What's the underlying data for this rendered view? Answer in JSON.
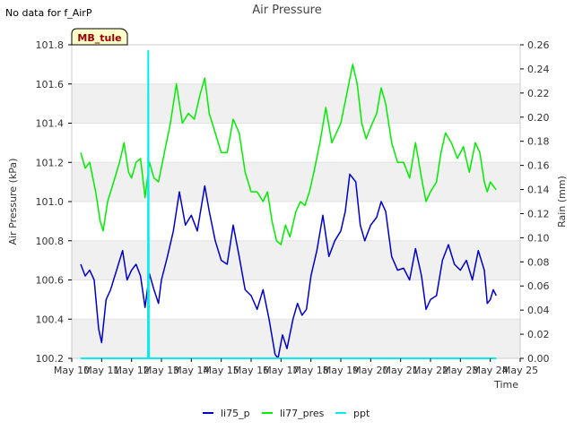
{
  "status_text": "No data for f_AirP",
  "site_badge": "MB_tule",
  "colors": {
    "li75_p": "#0000cc",
    "li77_pres": "#00ee00",
    "ppt": "#00eeee",
    "band": "#f0f0f0",
    "badge_bg": "#ffffcc",
    "badge_text": "#990000"
  },
  "chart_data": {
    "type": "line",
    "title": "Air Pressure",
    "xlabel": "Time",
    "ylabel": "Air Pressure (kPa)",
    "y2label": "Rain (mm)",
    "xlim": [
      10,
      25
    ],
    "ylim": [
      100.2,
      101.8
    ],
    "y2lim": [
      0,
      0.26
    ],
    "xticks": [
      "May 10",
      "May 11",
      "May 12",
      "May 13",
      "May 14",
      "May 15",
      "May 16",
      "May 17",
      "May 18",
      "May 19",
      "May 20",
      "May 21",
      "May 22",
      "May 23",
      "May 24",
      "May 25"
    ],
    "yticks": [
      "100.2",
      "100.4",
      "100.6",
      "100.8",
      "101.0",
      "101.2",
      "101.4",
      "101.6",
      "101.8"
    ],
    "y2ticks": [
      "0.00",
      "0.02",
      "0.04",
      "0.06",
      "0.08",
      "0.10",
      "0.12",
      "0.14",
      "0.16",
      "0.18",
      "0.20",
      "0.22",
      "0.24",
      "0.26"
    ],
    "legend_position": "bottom",
    "grid": "alternating horizontal bands",
    "series": [
      {
        "name": "li75_p",
        "axis": "left",
        "points": [
          [
            10.3,
            100.68
          ],
          [
            10.45,
            100.62
          ],
          [
            10.6,
            100.65
          ],
          [
            10.75,
            100.6
          ],
          [
            10.9,
            100.35
          ],
          [
            11.0,
            100.28
          ],
          [
            11.15,
            100.5
          ],
          [
            11.3,
            100.55
          ],
          [
            11.5,
            100.65
          ],
          [
            11.7,
            100.75
          ],
          [
            11.85,
            100.6
          ],
          [
            12.0,
            100.65
          ],
          [
            12.15,
            100.68
          ],
          [
            12.3,
            100.62
          ],
          [
            12.45,
            100.46
          ],
          [
            12.6,
            100.63
          ],
          [
            12.75,
            100.55
          ],
          [
            12.9,
            100.48
          ],
          [
            13.0,
            100.6
          ],
          [
            13.2,
            100.72
          ],
          [
            13.4,
            100.85
          ],
          [
            13.6,
            101.05
          ],
          [
            13.8,
            100.88
          ],
          [
            14.0,
            100.93
          ],
          [
            14.2,
            100.85
          ],
          [
            14.45,
            101.08
          ],
          [
            14.6,
            100.95
          ],
          [
            14.8,
            100.8
          ],
          [
            15.0,
            100.7
          ],
          [
            15.2,
            100.68
          ],
          [
            15.4,
            100.88
          ],
          [
            15.6,
            100.72
          ],
          [
            15.8,
            100.55
          ],
          [
            16.0,
            100.52
          ],
          [
            16.2,
            100.45
          ],
          [
            16.4,
            100.55
          ],
          [
            16.6,
            100.4
          ],
          [
            16.8,
            100.22
          ],
          [
            16.9,
            100.2
          ],
          [
            17.05,
            100.32
          ],
          [
            17.2,
            100.25
          ],
          [
            17.4,
            100.4
          ],
          [
            17.55,
            100.48
          ],
          [
            17.7,
            100.42
          ],
          [
            17.85,
            100.45
          ],
          [
            18.0,
            100.62
          ],
          [
            18.2,
            100.75
          ],
          [
            18.4,
            100.93
          ],
          [
            18.6,
            100.72
          ],
          [
            18.8,
            100.8
          ],
          [
            19.0,
            100.85
          ],
          [
            19.15,
            100.95
          ],
          [
            19.3,
            101.14
          ],
          [
            19.5,
            101.1
          ],
          [
            19.65,
            100.88
          ],
          [
            19.8,
            100.8
          ],
          [
            20.0,
            100.88
          ],
          [
            20.2,
            100.92
          ],
          [
            20.35,
            101.0
          ],
          [
            20.5,
            100.95
          ],
          [
            20.7,
            100.72
          ],
          [
            20.9,
            100.65
          ],
          [
            21.1,
            100.66
          ],
          [
            21.3,
            100.6
          ],
          [
            21.5,
            100.76
          ],
          [
            21.7,
            100.62
          ],
          [
            21.85,
            100.45
          ],
          [
            22.0,
            100.5
          ],
          [
            22.2,
            100.52
          ],
          [
            22.4,
            100.7
          ],
          [
            22.6,
            100.78
          ],
          [
            22.8,
            100.68
          ],
          [
            23.0,
            100.65
          ],
          [
            23.2,
            100.7
          ],
          [
            23.4,
            100.6
          ],
          [
            23.6,
            100.75
          ],
          [
            23.8,
            100.65
          ],
          [
            23.9,
            100.48
          ],
          [
            24.0,
            100.5
          ],
          [
            24.1,
            100.55
          ],
          [
            24.2,
            100.52
          ]
        ]
      },
      {
        "name": "li77_pres",
        "axis": "left",
        "points": [
          [
            10.3,
            101.25
          ],
          [
            10.45,
            101.17
          ],
          [
            10.6,
            101.2
          ],
          [
            10.8,
            101.05
          ],
          [
            10.95,
            100.9
          ],
          [
            11.05,
            100.85
          ],
          [
            11.2,
            101.0
          ],
          [
            11.4,
            101.1
          ],
          [
            11.6,
            101.2
          ],
          [
            11.75,
            101.3
          ],
          [
            11.9,
            101.15
          ],
          [
            12.0,
            101.12
          ],
          [
            12.15,
            101.2
          ],
          [
            12.3,
            101.22
          ],
          [
            12.45,
            101.02
          ],
          [
            12.6,
            101.2
          ],
          [
            12.75,
            101.12
          ],
          [
            12.9,
            101.1
          ],
          [
            13.1,
            101.25
          ],
          [
            13.3,
            101.4
          ],
          [
            13.5,
            101.6
          ],
          [
            13.7,
            101.4
          ],
          [
            13.9,
            101.45
          ],
          [
            14.1,
            101.42
          ],
          [
            14.3,
            101.55
          ],
          [
            14.45,
            101.63
          ],
          [
            14.6,
            101.45
          ],
          [
            14.8,
            101.35
          ],
          [
            15.0,
            101.25
          ],
          [
            15.2,
            101.25
          ],
          [
            15.4,
            101.42
          ],
          [
            15.6,
            101.35
          ],
          [
            15.8,
            101.15
          ],
          [
            16.0,
            101.05
          ],
          [
            16.2,
            101.05
          ],
          [
            16.4,
            101.0
          ],
          [
            16.55,
            101.05
          ],
          [
            16.7,
            100.9
          ],
          [
            16.85,
            100.8
          ],
          [
            17.0,
            100.78
          ],
          [
            17.15,
            100.88
          ],
          [
            17.3,
            100.82
          ],
          [
            17.5,
            100.95
          ],
          [
            17.65,
            101.0
          ],
          [
            17.8,
            100.98
          ],
          [
            17.95,
            101.05
          ],
          [
            18.1,
            101.15
          ],
          [
            18.3,
            101.3
          ],
          [
            18.5,
            101.48
          ],
          [
            18.7,
            101.3
          ],
          [
            18.85,
            101.35
          ],
          [
            19.0,
            101.4
          ],
          [
            19.2,
            101.55
          ],
          [
            19.4,
            101.7
          ],
          [
            19.55,
            101.6
          ],
          [
            19.7,
            101.4
          ],
          [
            19.85,
            101.32
          ],
          [
            20.0,
            101.38
          ],
          [
            20.2,
            101.45
          ],
          [
            20.35,
            101.58
          ],
          [
            20.5,
            101.5
          ],
          [
            20.7,
            101.3
          ],
          [
            20.9,
            101.2
          ],
          [
            21.1,
            101.2
          ],
          [
            21.3,
            101.12
          ],
          [
            21.5,
            101.3
          ],
          [
            21.7,
            101.12
          ],
          [
            21.85,
            101.0
          ],
          [
            22.0,
            101.05
          ],
          [
            22.2,
            101.1
          ],
          [
            22.35,
            101.25
          ],
          [
            22.5,
            101.35
          ],
          [
            22.7,
            101.3
          ],
          [
            22.9,
            101.22
          ],
          [
            23.1,
            101.28
          ],
          [
            23.3,
            101.15
          ],
          [
            23.5,
            101.3
          ],
          [
            23.65,
            101.25
          ],
          [
            23.8,
            101.1
          ],
          [
            23.9,
            101.05
          ],
          [
            24.0,
            101.1
          ],
          [
            24.1,
            101.08
          ],
          [
            24.2,
            101.06
          ]
        ]
      },
      {
        "name": "ppt",
        "axis": "right",
        "points": [
          [
            10.3,
            0.0
          ],
          [
            12.55,
            0.0
          ],
          [
            12.56,
            0.255
          ],
          [
            12.58,
            0.0
          ],
          [
            24.2,
            0.0
          ]
        ]
      }
    ]
  }
}
